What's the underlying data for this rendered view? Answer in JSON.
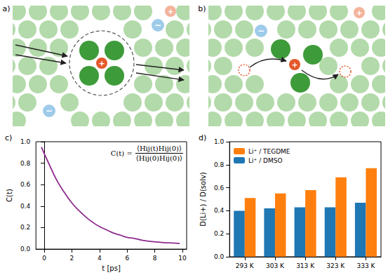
{
  "diagrams": [
    {
      "panel_label": "a)",
      "cation_sign": "+",
      "anion_sign": "−"
    },
    {
      "panel_label": "b)",
      "cation_sign": "+",
      "anion_sign": "−"
    }
  ],
  "chart_data": [
    {
      "panel_label": "c)",
      "type": "line",
      "xlabel": "t [ps]",
      "ylabel": "C(t)",
      "annotation": {
        "lhs": "C(t) =",
        "numerator": "⟨Hij(t)Hij(0)⟩",
        "denominator": "⟨Hij(0)Hij(0)⟩"
      },
      "x": [
        -0.2,
        0,
        0.5,
        1,
        1.5,
        2,
        2.5,
        3,
        3.5,
        4,
        4.5,
        5,
        5.5,
        6,
        6.5,
        7,
        7.5,
        8,
        8.5,
        9,
        9.5,
        9.8
      ],
      "values": [
        0.95,
        0.89,
        0.75,
        0.62,
        0.52,
        0.43,
        0.36,
        0.3,
        0.25,
        0.21,
        0.18,
        0.15,
        0.13,
        0.11,
        0.1,
        0.085,
        0.075,
        0.068,
        0.062,
        0.058,
        0.055,
        0.052
      ],
      "color": "#8e2a8e",
      "xlim": [
        -0.6,
        10.3
      ],
      "xticks": [
        0,
        2,
        4,
        6,
        8,
        10
      ],
      "ylim": [
        0,
        1.0
      ],
      "yticks": [
        {
          "value": 0,
          "label": "0.0"
        },
        0.2,
        0.4,
        0.6,
        0.8,
        {
          "value": 1.0,
          "label": "1.0"
        }
      ],
      "grid": false
    },
    {
      "panel_label": "d)",
      "type": "bar",
      "ylabel": "D(Li+) / D(solv)",
      "categories": [
        "293 K",
        "303 K",
        "313 K",
        "323 K",
        "333 K"
      ],
      "series": [
        {
          "name": "Li⁺ / TEGDME",
          "color": "#ff7f0e",
          "values": [
            0.51,
            0.55,
            0.58,
            0.69,
            0.77
          ]
        },
        {
          "name": "Li⁺ / DMSO",
          "color": "#1f77b4",
          "values": [
            0.4,
            0.42,
            0.43,
            0.43,
            0.47
          ]
        }
      ],
      "ylim": [
        0,
        1.0
      ],
      "yticks": [
        {
          "value": 0,
          "label": "0.0"
        },
        0.2,
        0.4,
        0.6,
        0.8,
        {
          "value": 1.0,
          "label": "1.0"
        }
      ],
      "legend": "upper left",
      "grid": false
    }
  ]
}
